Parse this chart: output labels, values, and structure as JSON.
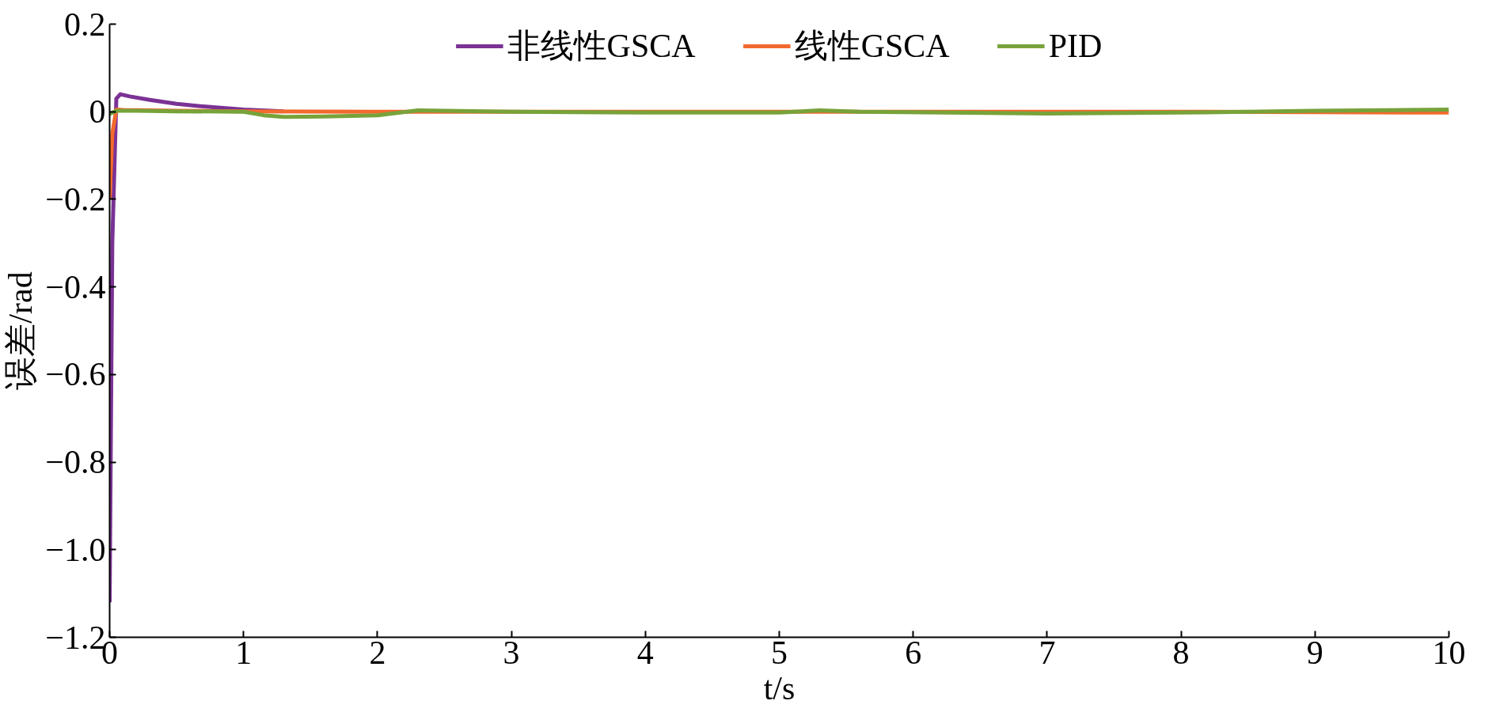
{
  "chart_data": {
    "type": "line",
    "xlabel": "t/s",
    "ylabel": "误差/rad",
    "xlim": [
      0,
      10
    ],
    "ylim": [
      -1.2,
      0.2
    ],
    "xticks": [
      0,
      1,
      2,
      3,
      4,
      5,
      6,
      7,
      8,
      9,
      10
    ],
    "yticks": [
      {
        "value": 0.2,
        "label": "0.2"
      },
      0,
      {
        "value": -0.2,
        "label": "−0.2"
      },
      {
        "value": -0.4,
        "label": "−0.4"
      },
      {
        "value": -0.6,
        "label": "−0.6"
      },
      {
        "value": -0.8,
        "label": "−0.8"
      },
      {
        "value": -1.0,
        "label": "−1.0"
      },
      {
        "value": -1.2,
        "label": "−1.2"
      }
    ],
    "grid": false,
    "legend": "top",
    "series": [
      {
        "name": "非线性GSCA",
        "color": "#7b3294",
        "x": [
          0,
          0.02,
          0.05,
          0.08,
          0.15,
          0.3,
          0.5,
          0.7,
          1.0,
          1.3
        ],
        "values": [
          -1.12,
          -0.3,
          0.03,
          0.04,
          0.035,
          0.027,
          0.018,
          0.012,
          0.005,
          0.001
        ]
      },
      {
        "name": "线性GSCA",
        "color": "#f26a2e",
        "x": [
          0,
          0.02,
          0.05,
          0.1,
          0.5,
          1.0,
          2,
          4,
          6,
          8,
          10
        ],
        "values": [
          -0.2,
          -0.05,
          0.005,
          0.004,
          0.002,
          0.001,
          0,
          0,
          0,
          0,
          -0.002
        ]
      },
      {
        "name": "PID",
        "color": "#77a33a",
        "x": [
          0,
          0.05,
          0.2,
          0.5,
          1.0,
          1.15,
          1.3,
          1.6,
          2.0,
          2.3,
          3,
          4,
          5,
          5.3,
          5.6,
          7,
          8,
          9,
          10
        ],
        "values": [
          -0.005,
          0.002,
          0.002,
          0.001,
          0,
          -0.008,
          -0.012,
          -0.011,
          -0.008,
          0.003,
          0,
          -0.002,
          -0.002,
          0.003,
          0,
          -0.004,
          -0.002,
          0.002,
          0.005
        ]
      }
    ]
  }
}
